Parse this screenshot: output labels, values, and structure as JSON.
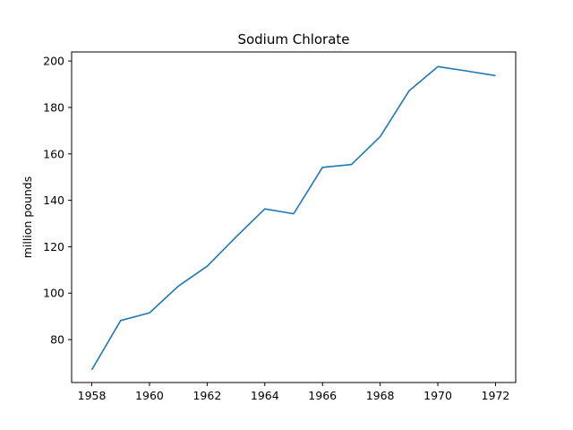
{
  "chart_data": {
    "type": "line",
    "title": "Sodium Chlorate",
    "xlabel": "",
    "ylabel": "million pounds",
    "x": [
      1958,
      1959,
      1960,
      1961,
      1962,
      1963,
      1964,
      1965,
      1966,
      1967,
      1968,
      1969,
      1970,
      1971,
      1972
    ],
    "series": [
      {
        "values": [
          67,
          88.2,
          91.5,
          103,
          111.6,
          124.2,
          136.3,
          134.2,
          154.2,
          155.4,
          167.4,
          187.1,
          197.6,
          195.7,
          193.7
        ],
        "color": "#1f77b4"
      }
    ],
    "xlim": [
      1957.3,
      1972.7
    ],
    "ylim": [
      61.5,
      203.9
    ],
    "xticks": [
      1958,
      1960,
      1962,
      1964,
      1966,
      1968,
      1970,
      1972
    ],
    "yticks": [
      80,
      100,
      120,
      140,
      160,
      180,
      200
    ],
    "grid": false,
    "legend": "none"
  }
}
